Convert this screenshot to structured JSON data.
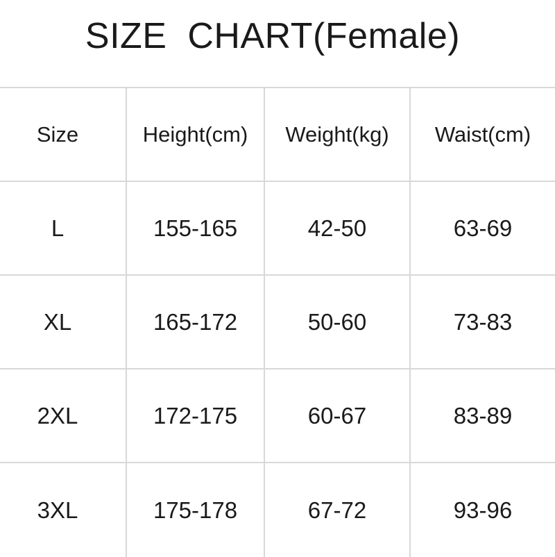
{
  "title": "SIZE  CHART(Female)",
  "headers": [
    "Size",
    "Height(cm)",
    "Weight(kg)",
    "Waist(cm)"
  ],
  "rows": [
    [
      "L",
      "155-165",
      "42-50",
      "63-69"
    ],
    [
      "XL",
      "165-172",
      "50-60",
      "73-83"
    ],
    [
      "2XL",
      "172-175",
      "60-67",
      "83-89"
    ],
    [
      "3XL",
      "175-178",
      "67-72",
      "93-96"
    ]
  ]
}
